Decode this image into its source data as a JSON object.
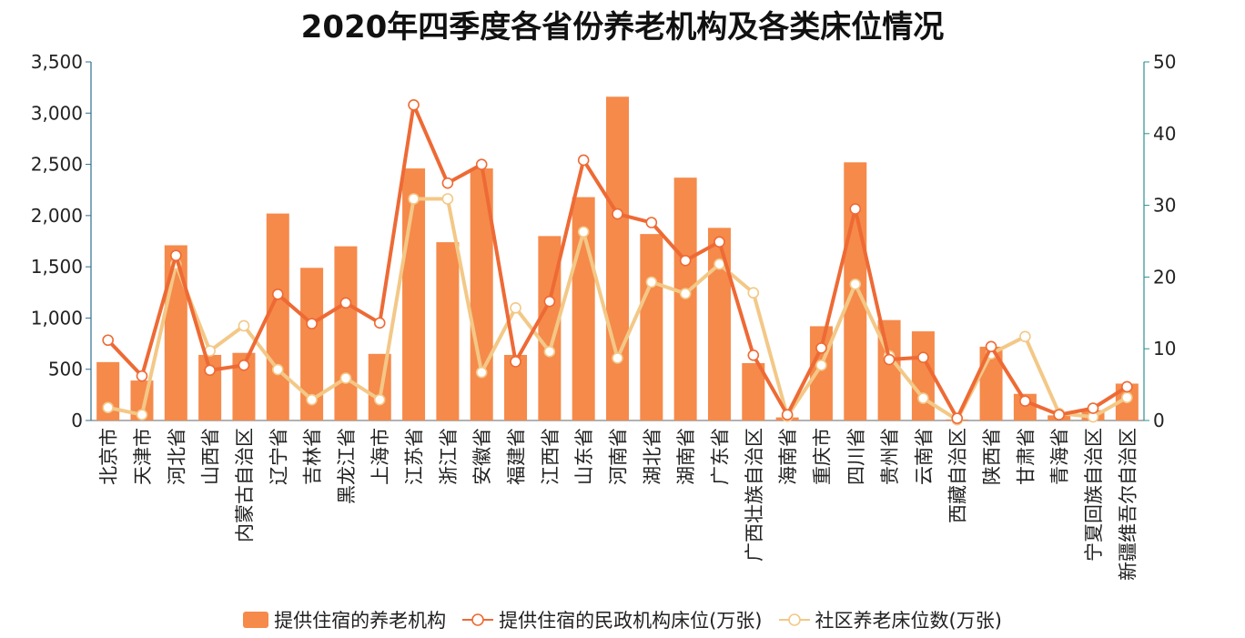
{
  "colors": {
    "bar": "#F58A4B",
    "line1": "#EE6A35",
    "line2": "#F3C887",
    "axis_left": "#2f6f8f",
    "axis_right": "#2f8f8f"
  },
  "chart_data": {
    "type": "bar",
    "title": "2020年四季度各省份养老机构及各类床位情况",
    "categories": [
      "北京市",
      "天津市",
      "河北省",
      "山西省",
      "内蒙古自治区",
      "辽宁省",
      "吉林省",
      "黑龙江省",
      "上海市",
      "江苏省",
      "浙江省",
      "安徽省",
      "福建省",
      "江西省",
      "山东省",
      "河南省",
      "湖北省",
      "湖南省",
      "广东省",
      "广西壮族自治区",
      "海南省",
      "重庆市",
      "四川省",
      "贵州省",
      "云南省",
      "西藏自治区",
      "陕西省",
      "甘肃省",
      "青海省",
      "宁夏回族自治区",
      "新疆维吾尔自治区"
    ],
    "y_left": {
      "ticks": [
        "0",
        "500",
        "1,000",
        "1,500",
        "2,000",
        "2,500",
        "3,000",
        "3,500"
      ],
      "ylim": [
        0,
        3500
      ]
    },
    "y_right": {
      "ticks": [
        "0",
        "10",
        "20",
        "30",
        "40",
        "50"
      ],
      "ylim": [
        0,
        50
      ]
    },
    "series": [
      {
        "name": "提供住宿的养老机构",
        "type": "bar",
        "axis": "left",
        "values": [
          570,
          390,
          1710,
          640,
          660,
          2020,
          1490,
          1700,
          650,
          2460,
          1740,
          2460,
          640,
          1800,
          2180,
          3160,
          1820,
          2370,
          1880,
          560,
          30,
          920,
          2520,
          980,
          870,
          10,
          720,
          260,
          50,
          100,
          360
        ]
      },
      {
        "name": "提供住宿的民政机构床位(万张)",
        "type": "line",
        "axis": "right",
        "values": [
          11.2,
          6.2,
          23.0,
          7.0,
          7.7,
          17.6,
          13.5,
          16.4,
          13.6,
          44.0,
          33.1,
          35.7,
          8.2,
          16.6,
          36.3,
          28.8,
          27.6,
          22.3,
          24.9,
          9.1,
          0.8,
          10.1,
          29.5,
          8.5,
          8.8,
          0.3,
          10.3,
          2.7,
          0.8,
          1.7,
          4.7
        ]
      },
      {
        "name": "社区养老床位数(万张)",
        "type": "line",
        "axis": "right",
        "values": [
          1.8,
          0.8,
          21.8,
          9.7,
          13.2,
          7.1,
          2.9,
          5.9,
          2.9,
          30.9,
          30.9,
          6.7,
          15.7,
          9.6,
          26.3,
          8.7,
          19.3,
          17.7,
          21.8,
          17.8,
          0.6,
          7.7,
          19.0,
          9.0,
          3.1,
          0.1,
          9.3,
          11.7,
          1.0,
          0.5,
          3.2
        ]
      }
    ]
  }
}
